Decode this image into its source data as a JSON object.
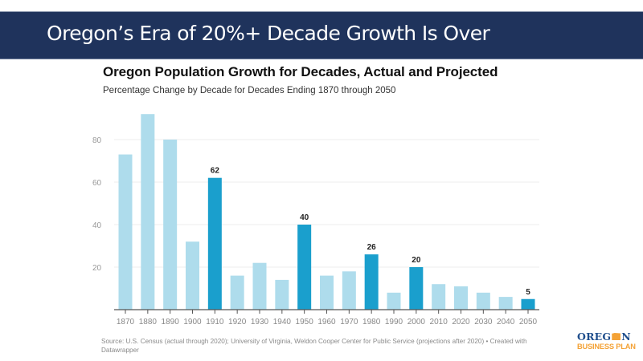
{
  "header": {
    "title": "Oregon’s Era of 20%+ Decade Growth Is Over"
  },
  "chart_data": {
    "type": "bar",
    "title": "Oregon Population Growth for Decades, Actual and Projected",
    "subtitle": "Percentage Change by Decade for Decades Ending 1870 through 2050",
    "xlabel": "",
    "ylabel": "",
    "ylim": [
      0,
      100
    ],
    "yticks": [
      20,
      40,
      60,
      80
    ],
    "grid": true,
    "categories": [
      "1870",
      "1880",
      "1890",
      "1900",
      "1910",
      "1920",
      "1930",
      "1940",
      "1950",
      "1960",
      "1970",
      "1980",
      "1990",
      "2000",
      "2010",
      "2020",
      "2030",
      "2040",
      "2050"
    ],
    "values": [
      73,
      92,
      80,
      32,
      62,
      16,
      22,
      14,
      40,
      16,
      18,
      26,
      8,
      20,
      12,
      11,
      8,
      6,
      5
    ],
    "highlighted": [
      "1910",
      "1950",
      "1980",
      "2000",
      "2050"
    ],
    "data_labels": {
      "1910": "62",
      "1950": "40",
      "1980": "26",
      "2000": "20",
      "2050": "5"
    },
    "colors": {
      "bar": "#aedcec",
      "highlight": "#1a9fcd",
      "grid": "#eeeeee",
      "axis": "#555555",
      "tick_label": "#999999"
    }
  },
  "footer": {
    "source": "Source: U.S. Census (actual through 2020); University of Virginia, Weldon Cooper Center for Public Service (projections after 2020) • Created with Datawrapper"
  },
  "logo": {
    "line1_left": "OREG",
    "line1_right": "N",
    "line2": "BUSINESS PLAN"
  }
}
